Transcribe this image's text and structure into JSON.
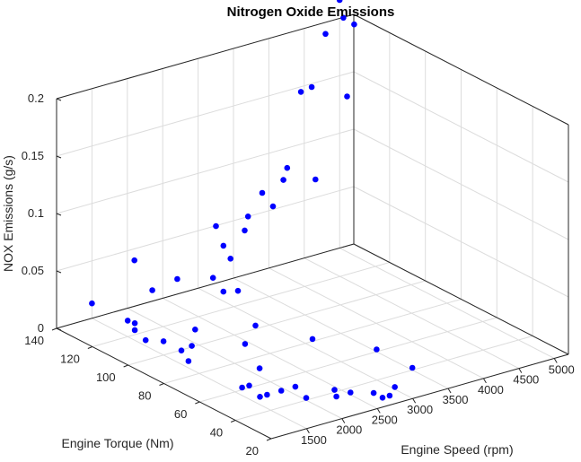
{
  "chart_data": {
    "type": "scatter",
    "title": "Nitrogen Oxide Emissions",
    "xlabel": "Engine Speed (rpm)",
    "ylabel": "Engine Torque (Nm)",
    "zlabel": "NOX Emissions (g/s)",
    "xlim": [
      1000,
      5200
    ],
    "ylim": [
      20,
      140
    ],
    "zlim": [
      0,
      0.2
    ],
    "xticks": [
      "1500",
      "2000",
      "2500",
      "3000",
      "3500",
      "4000",
      "4500",
      "5000"
    ],
    "yticks": [
      "20",
      "40",
      "60",
      "80",
      "100",
      "120",
      "140"
    ],
    "zticks": [
      "0",
      "0.05",
      "0.1",
      "0.15",
      "0.2"
    ],
    "grid": true,
    "marker_color": "#0000ff",
    "points": [
      [
        5000,
        140,
        0.216
      ],
      [
        4800,
        130,
        0.212
      ],
      [
        4700,
        120,
        0.216
      ],
      [
        4800,
        140,
        0.19
      ],
      [
        4100,
        120,
        0.172
      ],
      [
        4200,
        130,
        0.158
      ],
      [
        4600,
        120,
        0.155
      ],
      [
        3500,
        110,
        0.12
      ],
      [
        3900,
        110,
        0.103
      ],
      [
        3700,
        120,
        0.098
      ],
      [
        3400,
        120,
        0.092
      ],
      [
        3300,
        110,
        0.09
      ],
      [
        3200,
        120,
        0.075
      ],
      [
        2900,
        110,
        0.076
      ],
      [
        3000,
        130,
        0.062
      ],
      [
        2600,
        110,
        0.068
      ],
      [
        2200,
        100,
        0.055
      ],
      [
        2700,
        110,
        0.055
      ],
      [
        2300,
        90,
        0.05
      ],
      [
        2100,
        140,
        0.04
      ],
      [
        2200,
        120,
        0.038
      ],
      [
        2600,
        110,
        0.028
      ],
      [
        2100,
        130,
        0.022
      ],
      [
        1500,
        120,
        0.014
      ],
      [
        1500,
        140,
        0.013
      ],
      [
        1500,
        90,
        0.012
      ],
      [
        1600,
        120,
        0.01
      ],
      [
        1500,
        100,
        0.012
      ],
      [
        1500,
        110,
        0.005
      ],
      [
        1600,
        120,
        0.004
      ],
      [
        2200,
        110,
        0.002
      ],
      [
        2800,
        100,
        0.003
      ],
      [
        1600,
        90,
        0.001
      ],
      [
        1900,
        100,
        0.001
      ],
      [
        2400,
        90,
        0.002
      ],
      [
        3500,
        60,
        0.002
      ],
      [
        3100,
        80,
        0.002
      ],
      [
        2100,
        70,
        0.002
      ],
      [
        1700,
        60,
        0.002
      ],
      [
        1600,
        60,
        0.002
      ],
      [
        1600,
        50,
        0.002
      ],
      [
        1700,
        50,
        0.002
      ],
      [
        1900,
        50,
        0.002
      ],
      [
        2100,
        50,
        0.002
      ],
      [
        2000,
        40,
        0.002
      ],
      [
        2400,
        40,
        0.002
      ],
      [
        2300,
        35,
        0.002
      ],
      [
        2500,
        35,
        0.002
      ],
      [
        2700,
        30,
        0.002
      ],
      [
        2700,
        25,
        0.002
      ],
      [
        2800,
        25,
        0.002
      ],
      [
        3000,
        30,
        0.002
      ],
      [
        3500,
        40,
        0.002
      ]
    ]
  }
}
